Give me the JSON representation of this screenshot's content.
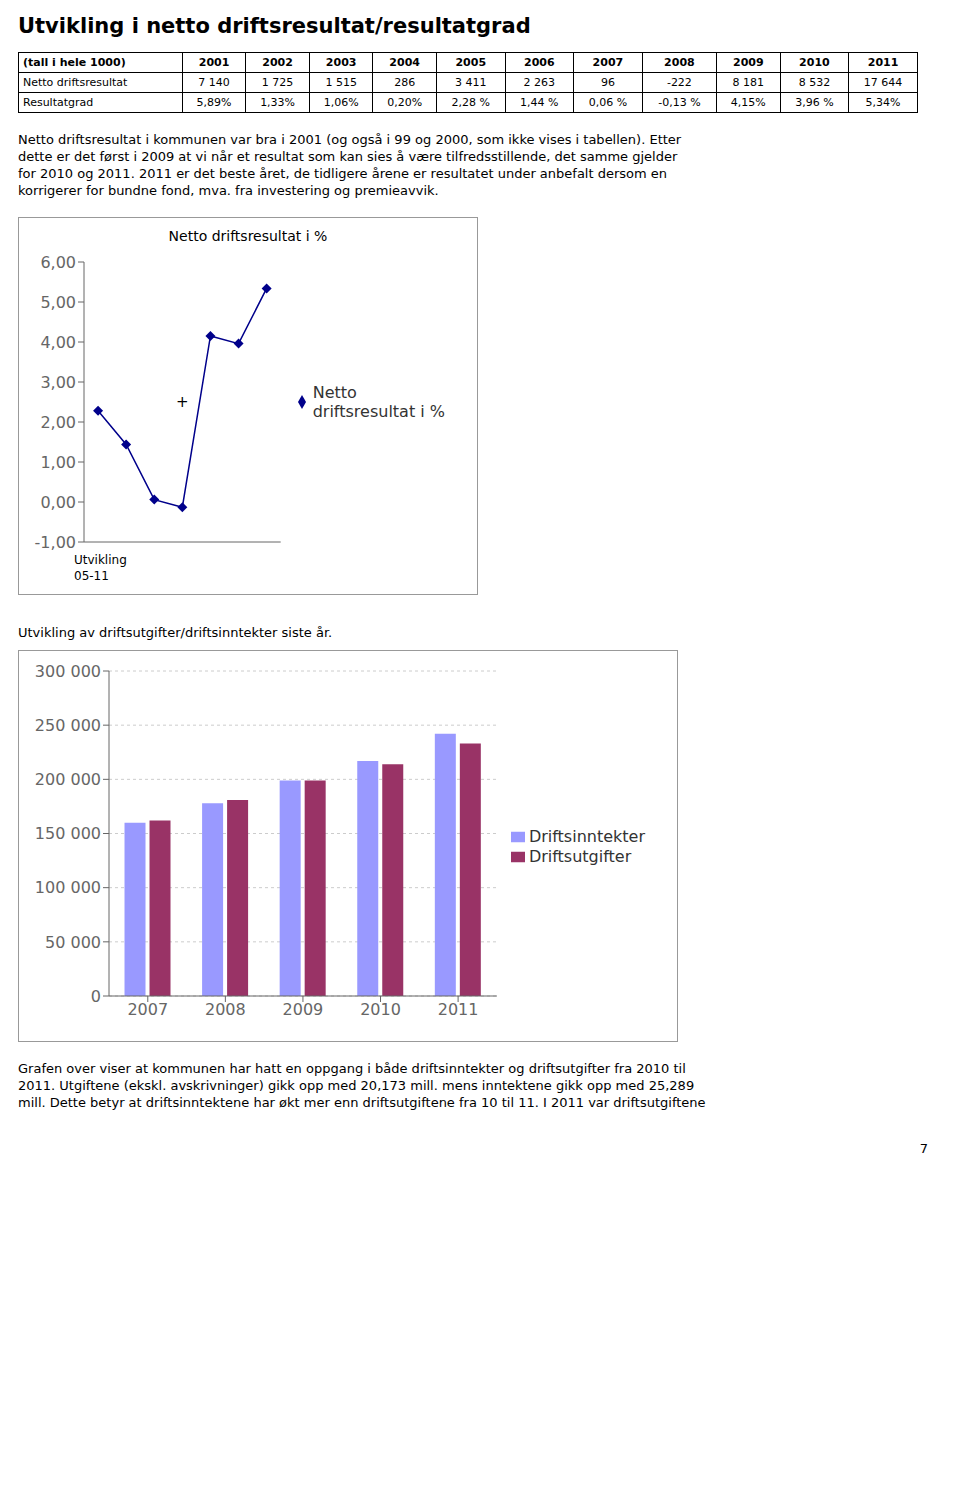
{
  "title": "Utvikling i netto driftsresultat/resultatgrad",
  "table": {
    "headers": [
      "(tall i hele 1000)",
      "2001",
      "2002",
      "2003",
      "2004",
      "2005",
      "2006",
      "2007",
      "2008",
      "2009",
      "2010",
      "2011"
    ],
    "rows": [
      [
        "Netto driftsresultat",
        "7 140",
        "1 725",
        "1 515",
        "286",
        "3 411",
        "2 263",
        "96",
        "-222",
        "8 181",
        "8 532",
        "17 644"
      ],
      [
        "Resultatgrad",
        "5,89%",
        "1,33%",
        "1,06%",
        "0,20%",
        "2,28 %",
        "1,44 %",
        "0,06 %",
        "-0,13 %",
        "4,15%",
        "3,96 %",
        "5,34%"
      ]
    ]
  },
  "paragraphs": [
    [
      "Netto driftsresultat i kommunen var bra i 2001 (og også i 99 og 2000, som ikke vises i tabellen). Etter",
      "dette er det først i 2009 at vi når et resultat som kan sies å være tilfredsstillende, det samme gjelder",
      "for 2010 og 2011. 2011 er det beste året, de tidligere årene er resultatet under anbefalt dersom en",
      "korrigerer for bundne fond, mva. fra investering og premieavvik."
    ],
    [
      "Grafen over viser at kommunen har hatt en oppgang i både driftsinntekter og driftsutgifter fra 2010 til",
      "2011. Utgiftene (ekskl. avskrivninger) gikk opp med 20,173 mill. mens inntektene gikk opp med 25,289",
      "mill. Dette betyr at driftsinntektene har økt mer enn driftsutgiftene fra 10 til 11. I 2011 var driftsutgiftene"
    ]
  ],
  "page_number": "7",
  "chart_data": [
    {
      "type": "line",
      "title": "Netto driftsresultat i %",
      "xlabel": "Utvikling\n05-11",
      "x": [
        1,
        2,
        3,
        4,
        5,
        6,
        7
      ],
      "xlim": [
        0.5,
        7.5
      ],
      "ylim": [
        -1.0,
        6.0
      ],
      "yticks": [
        {
          "value": -1.0,
          "label": "-1,00"
        },
        {
          "value": 0.0,
          "label": "0,00"
        },
        {
          "value": 1.0,
          "label": "1,00"
        },
        {
          "value": 2.0,
          "label": "2,00"
        },
        {
          "value": 3.0,
          "label": "3,00"
        },
        {
          "value": 4.0,
          "label": "4,00"
        },
        {
          "value": 5.0,
          "label": "5,00"
        },
        {
          "value": 6.0,
          "label": "6,00"
        }
      ],
      "tick_labels": "y",
      "grid": false,
      "legend": "right",
      "series": [
        {
          "name": "Netto\ndriftsresultat i %",
          "color": "#00008B",
          "marker": "diamond",
          "values": [
            2.28,
            1.44,
            0.06,
            -0.13,
            4.15,
            3.96,
            5.34
          ]
        }
      ],
      "annotations": [
        {
          "text": "+",
          "x": 4,
          "y": 2.5
        }
      ]
    },
    {
      "type": "bar",
      "title": "Utvikling av driftsutgifter/driftsinntekter siste år.",
      "categories": [
        "2007",
        "2008",
        "2009",
        "2010",
        "2011"
      ],
      "ylim": [
        0,
        300000
      ],
      "yticks": [
        0,
        {
          "value": 50000,
          "label": "50 000"
        },
        {
          "value": 100000,
          "label": "100 000"
        },
        {
          "value": 150000,
          "label": "150 000"
        },
        {
          "value": 200000,
          "label": "200 000"
        },
        {
          "value": 250000,
          "label": "250 000"
        },
        {
          "value": 300000,
          "label": "300 000"
        }
      ],
      "grid": true,
      "legend": "right",
      "series": [
        {
          "name": "Driftsinntekter",
          "color": "#9999FF",
          "values": [
            160000,
            178000,
            199000,
            217000,
            242000
          ]
        },
        {
          "name": "Driftsutgifter",
          "color": "#993366",
          "values": [
            162000,
            181000,
            199000,
            214000,
            233000
          ]
        }
      ]
    }
  ]
}
